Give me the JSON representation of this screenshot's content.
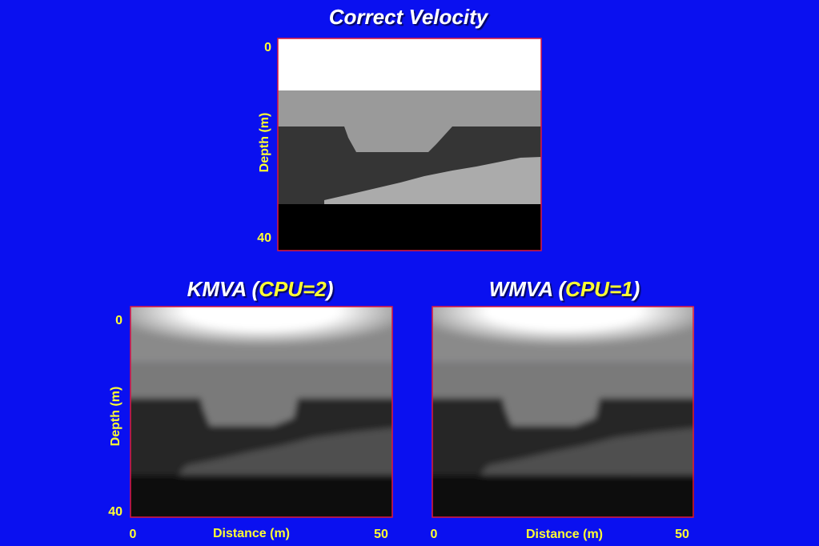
{
  "slide": {
    "title": "Correct Velocity",
    "top": {
      "y_axis_label": "Depth (m)",
      "y_ticks": [
        "0",
        "40"
      ]
    },
    "panels": [
      {
        "title_prefix": "KMVA (",
        "title_highlight": "CPU=2",
        "title_suffix": ")",
        "y_axis_label": "Depth (m)",
        "y_ticks": [
          "0",
          "40"
        ],
        "x_axis_label": "Distance (m)",
        "x_ticks": [
          "0",
          "50"
        ]
      },
      {
        "title_prefix": "WMVA (",
        "title_highlight": "CPU=1",
        "title_suffix": ")",
        "x_axis_label": "Distance (m)",
        "x_ticks": [
          "0",
          "50"
        ]
      }
    ]
  }
}
